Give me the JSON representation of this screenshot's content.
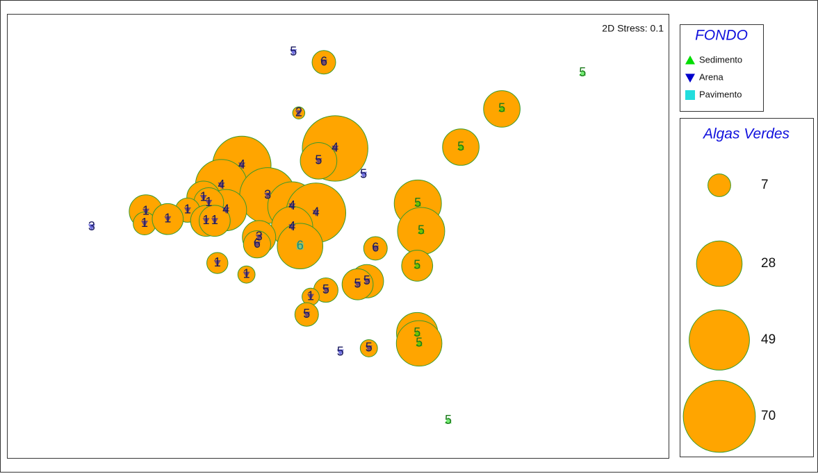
{
  "chart_data": {
    "type": "bubble",
    "annotation": "2D Stress: 0.1",
    "legend_title": "FONDO",
    "xlim": [
      0,
      100
    ],
    "ylim": [
      0,
      100
    ],
    "bubble_color": "#ffa500",
    "bubble_edge": "#3a9a2a",
    "series": [
      {
        "name": "Sedimento",
        "color": "#00dd00",
        "marker": "triangle-up",
        "label_color": "#1a7a1a",
        "x": [
          87.0,
          74.8,
          68.6,
          62.1,
          62.6,
          62.0,
          62.0,
          62.3,
          66.7
        ],
        "y": [
          86.7,
          78.6,
          70.0,
          57.3,
          51.1,
          43.3,
          28.1,
          25.8,
          8.4
        ],
        "sizes": [
          0,
          18,
          18,
          30,
          30,
          13,
          23,
          28,
          0
        ],
        "labels": [
          5,
          5,
          5,
          5,
          5,
          5,
          5,
          5,
          5
        ]
      },
      {
        "name": "Arena",
        "color": "#0000cc",
        "marker": "triangle-down",
        "label_color": "#1a1a5e",
        "x": [
          43.3,
          47.9,
          44.1,
          49.6,
          47.1,
          53.9,
          35.5,
          32.4,
          39.4,
          43.1,
          46.7,
          43.1,
          38.1,
          37.8,
          33.1,
          29.7,
          30.5,
          27.3,
          30.1,
          31.4,
          21.0,
          20.8,
          24.3,
          12.8,
          55.7,
          31.8,
          36.2,
          54.4,
          53.0,
          48.2,
          45.9,
          45.3,
          50.4,
          54.7
        ],
        "y": [
          91.4,
          89.1,
          77.7,
          69.7,
          66.9,
          63.8,
          65.9,
          61.4,
          59.1,
          56.7,
          55.2,
          52.0,
          49.7,
          48.1,
          55.8,
          58.6,
          57.5,
          55.8,
          53.4,
          53.4,
          55.5,
          52.8,
          53.8,
          52.0,
          47.2,
          43.9,
          41.3,
          39.8,
          39.1,
          37.8,
          36.3,
          32.3,
          23.8,
          24.7
        ],
        "sizes": [
          0,
          7.5,
          2,
          58,
          18,
          0,
          46,
          36,
          42,
          32,
          48,
          23,
          15,
          10,
          23,
          15,
          12,
          8,
          13,
          13,
          15,
          7,
          13,
          0,
          7.5,
          6,
          4,
          15,
          13,
          8,
          4,
          7.5,
          0,
          4
        ],
        "labels": [
          5,
          6,
          2,
          4,
          5,
          5,
          4,
          4,
          3,
          4,
          4,
          4,
          3,
          6,
          4,
          1,
          1,
          1,
          1,
          1,
          1,
          1,
          1,
          3,
          6,
          1,
          1,
          5,
          5,
          5,
          1,
          5,
          5,
          5
        ]
      },
      {
        "name": "Pavimento",
        "color": "#22dddd",
        "marker": "square",
        "label_color": "#1a8a7a",
        "x": [
          44.3
        ],
        "y": [
          47.7
        ],
        "sizes": [
          28
        ],
        "labels": [
          6
        ]
      }
    ],
    "size_legend": {
      "title": "Algas Verdes",
      "values": [
        7,
        28,
        49,
        70
      ]
    }
  }
}
